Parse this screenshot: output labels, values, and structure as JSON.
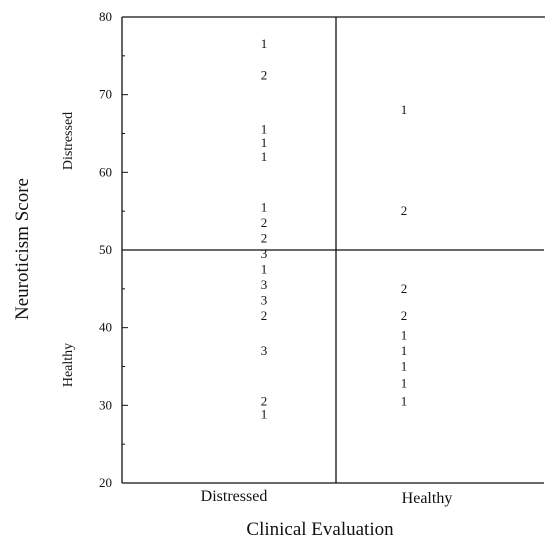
{
  "chart_data": {
    "type": "scatter",
    "title": "",
    "xlabel": "Clinical Evaluation",
    "ylabel": "Neuroticism Score",
    "x_categories": [
      "Distressed",
      "Healthy"
    ],
    "y_side_labels": [
      "Distressed",
      "Healthy"
    ],
    "ylim": [
      20,
      80
    ],
    "y_ticks": [
      20,
      30,
      40,
      50,
      60,
      70,
      80
    ],
    "cutoff_y": 50,
    "grid": false,
    "series": [
      {
        "points": [
          {
            "x": "Distressed",
            "y": 76.5,
            "count": "1"
          },
          {
            "x": "Distressed",
            "y": 72.5,
            "count": "2"
          },
          {
            "x": "Distressed",
            "y": 65.5,
            "count": "1"
          },
          {
            "x": "Distressed",
            "y": 63.8,
            "count": "1"
          },
          {
            "x": "Distressed",
            "y": 62.0,
            "count": "1"
          },
          {
            "x": "Distressed",
            "y": 55.5,
            "count": "1"
          },
          {
            "x": "Distressed",
            "y": 53.5,
            "count": "2"
          },
          {
            "x": "Distressed",
            "y": 51.5,
            "count": "2"
          },
          {
            "x": "Distressed",
            "y": 49.5,
            "count": "3"
          },
          {
            "x": "Distressed",
            "y": 47.5,
            "count": "1"
          },
          {
            "x": "Distressed",
            "y": 45.5,
            "count": "3"
          },
          {
            "x": "Distressed",
            "y": 43.5,
            "count": "3"
          },
          {
            "x": "Distressed",
            "y": 41.5,
            "count": "2"
          },
          {
            "x": "Distressed",
            "y": 37.0,
            "count": "3"
          },
          {
            "x": "Distressed",
            "y": 30.5,
            "count": "2"
          },
          {
            "x": "Distressed",
            "y": 28.8,
            "count": "1"
          },
          {
            "x": "Healthy",
            "y": 68.0,
            "count": "1"
          },
          {
            "x": "Healthy",
            "y": 55.0,
            "count": "2"
          },
          {
            "x": "Healthy",
            "y": 45.0,
            "count": "2"
          },
          {
            "x": "Healthy",
            "y": 41.5,
            "count": "2"
          },
          {
            "x": "Healthy",
            "y": 39.0,
            "count": "1"
          },
          {
            "x": "Healthy",
            "y": 37.0,
            "count": "1"
          },
          {
            "x": "Healthy",
            "y": 35.0,
            "count": "1"
          },
          {
            "x": "Healthy",
            "y": 32.8,
            "count": "1"
          },
          {
            "x": "Healthy",
            "y": 30.5,
            "count": "1"
          }
        ]
      }
    ]
  }
}
